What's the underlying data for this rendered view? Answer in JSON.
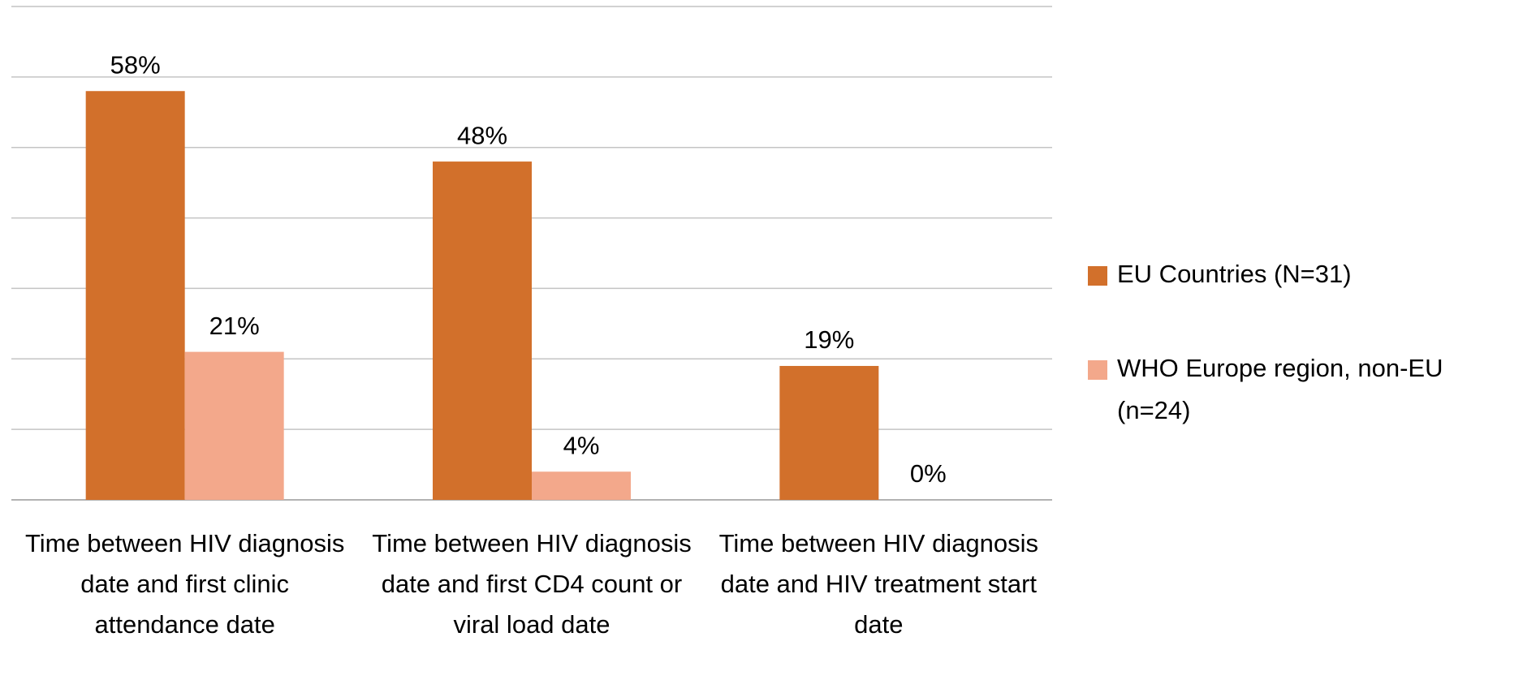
{
  "chart_data": {
    "type": "bar",
    "categories": [
      "Time between HIV diagnosis date and first clinic attendance date",
      "Time between HIV diagnosis date and first CD4 count or viral load date",
      "Time between HIV diagnosis date and HIV treatment start date"
    ],
    "series": [
      {
        "name": "EU Countries (N=31)",
        "color": "#d2702b",
        "values": [
          58,
          48,
          19
        ],
        "value_labels": [
          "58%",
          "48%",
          "19%"
        ]
      },
      {
        "name": "WHO Europe region, non-EU (n=24)",
        "color": "#f3a88b",
        "values": [
          21,
          4,
          0
        ],
        "value_labels": [
          "21%",
          "4%",
          "0%"
        ]
      }
    ],
    "ylim": [
      0,
      70
    ],
    "yticks": [
      0,
      10,
      20,
      30,
      40,
      50,
      60,
      70
    ],
    "grid": true,
    "legend": "right"
  }
}
